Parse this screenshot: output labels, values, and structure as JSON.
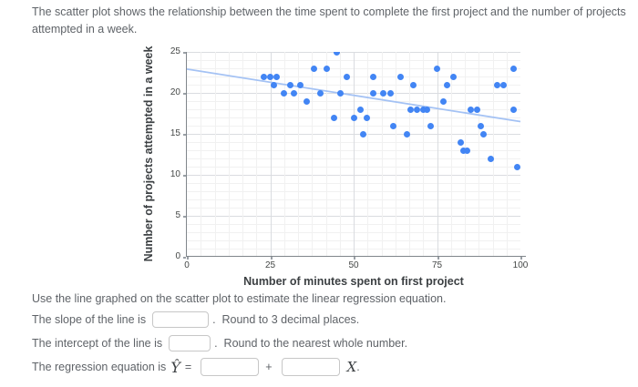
{
  "intro": "The scatter plot shows the relationship between the time spent to complete the first project and the number of projects attempted in a week.",
  "instruction": "Use the line graphed on the scatter plot to estimate the linear regression equation.",
  "slope_line": {
    "label": "The slope of the line is",
    "input_value": "",
    "after": ".  Round to 3 decimal places."
  },
  "intercept_line": {
    "label": "The intercept of the line is",
    "input_value": "",
    "after": ".  Round to the nearest whole number."
  },
  "equation_line": {
    "label": "The regression equation is",
    "y_hat": "Ŷ",
    "equals": "=",
    "input1_value": "",
    "plus": "+",
    "input2_value": "",
    "x_var": "X",
    "period": "."
  },
  "chart_data": {
    "type": "scatter",
    "title": "",
    "xlabel": "Number of minutes spent on first project",
    "ylabel": "Number of projects attempted in a week",
    "xlim": [
      0,
      100
    ],
    "ylim": [
      0,
      25
    ],
    "xticks": [
      0,
      25,
      50,
      75,
      100
    ],
    "yticks": [
      0,
      5,
      10,
      15,
      20,
      25
    ],
    "x_major_step": 25,
    "x_minor_divisions": 6,
    "y_major_step": 5,
    "y_minor_step": 1,
    "grid": true,
    "point_color": "#4285f4",
    "trend_line": {
      "x1": 0,
      "y1": 22.9,
      "x2": 100,
      "y2": 16.5,
      "color": "#a4c2f4"
    },
    "points": [
      [
        23,
        22
      ],
      [
        25,
        22
      ],
      [
        26,
        21
      ],
      [
        27,
        22
      ],
      [
        29,
        20
      ],
      [
        31,
        21
      ],
      [
        32,
        20
      ],
      [
        34,
        21
      ],
      [
        36,
        19
      ],
      [
        38,
        23
      ],
      [
        40,
        20
      ],
      [
        42,
        23
      ],
      [
        44,
        17
      ],
      [
        45,
        25
      ],
      [
        46,
        20
      ],
      [
        48,
        22
      ],
      [
        50,
        17
      ],
      [
        52,
        18
      ],
      [
        53,
        15
      ],
      [
        54,
        17
      ],
      [
        56,
        20
      ],
      [
        56,
        22
      ],
      [
        59,
        20
      ],
      [
        61,
        20
      ],
      [
        62,
        16
      ],
      [
        64,
        22
      ],
      [
        66,
        15
      ],
      [
        67,
        18
      ],
      [
        68,
        21
      ],
      [
        69,
        18
      ],
      [
        71,
        18
      ],
      [
        72,
        18
      ],
      [
        73,
        16
      ],
      [
        75,
        23
      ],
      [
        77,
        19
      ],
      [
        78,
        21
      ],
      [
        80,
        22
      ],
      [
        82,
        14
      ],
      [
        83,
        13
      ],
      [
        84,
        13
      ],
      [
        85,
        18
      ],
      [
        87,
        18
      ],
      [
        88,
        16
      ],
      [
        89,
        15
      ],
      [
        91,
        12
      ],
      [
        93,
        21
      ],
      [
        95,
        21
      ],
      [
        98,
        18
      ],
      [
        98,
        23
      ],
      [
        99,
        11
      ]
    ]
  }
}
